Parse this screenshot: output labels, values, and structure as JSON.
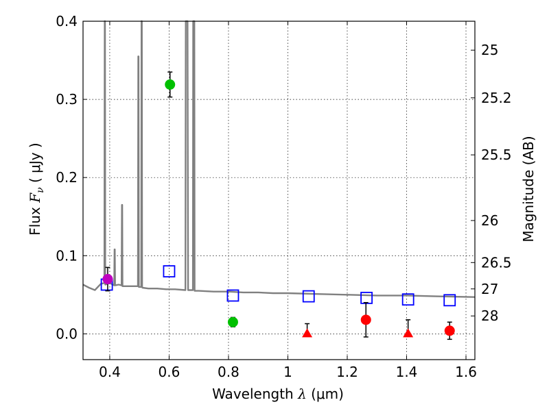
{
  "chart_data": {
    "type": "scatter",
    "xlabel": "Wavelength  λ (μm)",
    "ylabel": "Flux  F_ν  ( μJy )",
    "ylabel_parts": {
      "prefix": "Flux  ",
      "symbol": "F",
      "subscript": "ν",
      "suffix": "  ( μJy )"
    },
    "xlabel_parts": {
      "prefix": "Wavelength  ",
      "symbol": "λ",
      "suffix": " (μm)"
    },
    "y2label": "Magnitude (AB)",
    "xlim": [
      0.31,
      1.63
    ],
    "ylim": [
      -0.033,
      0.4
    ],
    "grid": true,
    "x_ticks": [
      {
        "value": 0.4,
        "label": "0.4"
      },
      {
        "value": 0.6,
        "label": "0.6"
      },
      {
        "value": 0.8,
        "label": "0.8"
      },
      {
        "value": 1.0,
        "label": "1"
      },
      {
        "value": 1.2,
        "label": "1.2"
      },
      {
        "value": 1.4,
        "label": "1.4"
      },
      {
        "value": 1.6,
        "label": "1.6"
      }
    ],
    "y_ticks": [
      {
        "value": 0.0,
        "label": "0.0"
      },
      {
        "value": 0.1,
        "label": "0.1"
      },
      {
        "value": 0.2,
        "label": "0.2"
      },
      {
        "value": 0.3,
        "label": "0.3"
      },
      {
        "value": 0.4,
        "label": "0.4"
      }
    ],
    "mag_ticks": [
      {
        "label": "25",
        "flux": 0.363
      },
      {
        "label": "25.2",
        "flux": 0.302
      },
      {
        "label": "25.5",
        "flux": 0.229
      },
      {
        "label": "26",
        "flux": 0.145
      },
      {
        "label": "26.5",
        "flux": 0.0912
      },
      {
        "label": "27",
        "flux": 0.0575
      },
      {
        "label": "28",
        "flux": 0.0229
      }
    ],
    "series": [
      {
        "name": "model-spectrum",
        "kind": "line",
        "color": "#808080",
        "x": [
          0.31,
          0.33,
          0.35,
          0.37,
          0.382,
          0.383,
          0.384,
          0.385,
          0.4,
          0.415,
          0.416,
          0.417,
          0.418,
          0.43,
          0.44,
          0.441,
          0.442,
          0.443,
          0.46,
          0.48,
          0.495,
          0.496,
          0.497,
          0.498,
          0.499,
          0.506,
          0.507,
          0.508,
          0.509,
          0.51,
          0.53,
          0.56,
          0.59,
          0.62,
          0.655,
          0.656,
          0.658,
          0.66,
          0.662,
          0.664,
          0.68,
          0.681,
          0.683,
          0.685,
          0.686,
          0.7,
          0.75,
          0.8,
          0.85,
          0.9,
          0.95,
          1.0,
          1.1,
          1.2,
          1.3,
          1.4,
          1.5,
          1.63
        ],
        "y": [
          0.063,
          0.059,
          0.056,
          0.064,
          0.065,
          0.4,
          0.4,
          0.063,
          0.065,
          0.062,
          0.108,
          0.108,
          0.062,
          0.063,
          0.062,
          0.165,
          0.165,
          0.061,
          0.061,
          0.061,
          0.061,
          0.355,
          0.355,
          0.06,
          0.06,
          0.06,
          0.4,
          0.4,
          0.06,
          0.059,
          0.058,
          0.058,
          0.057,
          0.057,
          0.056,
          0.4,
          0.4,
          0.4,
          0.4,
          0.056,
          0.056,
          0.4,
          0.4,
          0.4,
          0.055,
          0.055,
          0.054,
          0.054,
          0.053,
          0.053,
          0.052,
          0.052,
          0.051,
          0.05,
          0.049,
          0.049,
          0.048,
          0.047
        ]
      },
      {
        "name": "model-photometry",
        "kind": "open-square",
        "color": "#0000ff",
        "points": [
          [
            0.39,
            0.063
          ],
          [
            0.6,
            0.08
          ],
          [
            0.815,
            0.049
          ],
          [
            1.07,
            0.048
          ],
          [
            1.265,
            0.046
          ],
          [
            1.405,
            0.044
          ],
          [
            1.545,
            0.043
          ]
        ]
      },
      {
        "name": "observed-purple",
        "kind": "circle",
        "color": "#bf00bf",
        "points": [
          [
            0.393,
            0.07,
            0.015
          ]
        ]
      },
      {
        "name": "observed-green",
        "kind": "circle",
        "color": "#00c000",
        "points": [
          [
            0.603,
            0.319,
            0.016
          ],
          [
            0.815,
            0.015,
            0.006
          ]
        ]
      },
      {
        "name": "observed-red",
        "kind": "circle",
        "color": "#ff0000",
        "points": [
          [
            1.263,
            0.018,
            0.022
          ],
          [
            1.545,
            0.004,
            0.011
          ]
        ]
      },
      {
        "name": "upper-limits-red",
        "kind": "triangle",
        "color": "#ff0000",
        "points": [
          [
            1.065,
            0.0,
            0.013
          ],
          [
            1.405,
            0.0,
            0.018
          ]
        ]
      }
    ]
  }
}
